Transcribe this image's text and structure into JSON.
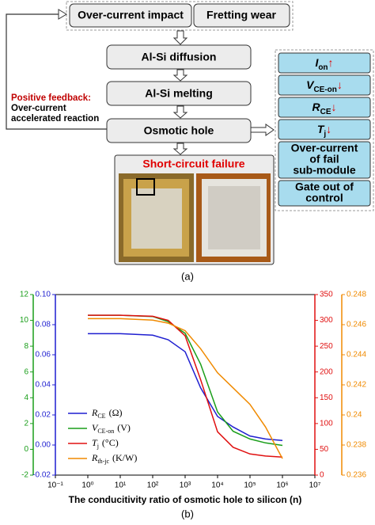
{
  "diagram": {
    "top_row": [
      "Over-current impact",
      "Fretting wear"
    ],
    "steps": [
      "Al-Si diffusion",
      "Al-Si melting",
      "Osmotic hole"
    ],
    "photo_title": "Short-circuit failure",
    "feedback": {
      "title": "Positive feedback:",
      "lines": [
        "Over-current",
        "accelerated reaction"
      ]
    },
    "effects": [
      {
        "symbol": "I",
        "sub": "on",
        "arrow": "↑"
      },
      {
        "symbol": "V",
        "sub": "CE-on",
        "arrow": "↓"
      },
      {
        "symbol": "R",
        "sub": "CE",
        "arrow": "↓"
      },
      {
        "symbol": "T",
        "sub": "j",
        "arrow": "↓"
      }
    ],
    "outcomes": [
      [
        "Over-current",
        "of fail",
        "sub-module"
      ],
      [
        "Gate out of",
        "control"
      ]
    ],
    "caption": "(a)"
  },
  "chart_data": {
    "type": "line",
    "caption": "(b)",
    "x_label": "The conducitivity ratio of osmotic hole to silicon (n)",
    "x_log": true,
    "xlim": [
      0.1,
      10000000
    ],
    "xticks": [
      {
        "value": 0.1,
        "label": "10⁻¹"
      },
      {
        "value": 1,
        "label": "10⁰"
      },
      {
        "value": 10,
        "label": "10¹"
      },
      {
        "value": 100,
        "label": "10²"
      },
      {
        "value": 1000,
        "label": "10³"
      },
      {
        "value": 10000,
        "label": "10⁴"
      },
      {
        "value": 100000,
        "label": "10⁵"
      },
      {
        "value": 1000000,
        "label": "10⁶"
      },
      {
        "value": 10000000,
        "label": "10⁷"
      }
    ],
    "axes": [
      {
        "side": "left-outer",
        "color": "#1a9e1a",
        "lim": [
          -2,
          12
        ],
        "ticks": [
          -2,
          0,
          2,
          4,
          6,
          8,
          10,
          12
        ]
      },
      {
        "side": "left-inner",
        "color": "#1f1fd0",
        "lim": [
          -0.02,
          0.1
        ],
        "ticks": [
          -0.02,
          {
            "value": 0,
            "label": "0.00"
          },
          0.02,
          0.04,
          0.06,
          0.08,
          {
            "value": 0.1,
            "label": "0.10"
          }
        ]
      },
      {
        "side": "right-inner",
        "color": "#e01010",
        "lim": [
          0,
          350
        ],
        "ticks": [
          0,
          50,
          100,
          150,
          200,
          250,
          300,
          350
        ]
      },
      {
        "side": "right-outer",
        "color": "#f08a00",
        "lim": [
          0.236,
          0.248
        ],
        "ticks": [
          0.236,
          0.238,
          0.24,
          0.242,
          0.244,
          0.246,
          0.248
        ]
      }
    ],
    "x": [
      1,
      10,
      100,
      300,
      1000,
      3000,
      10000,
      30000,
      100000,
      300000,
      1000000
    ],
    "series": [
      {
        "name": "R",
        "sub": "CE",
        "unit": "(Ω)",
        "color": "#1f1fd0",
        "axis": 1,
        "values": [
          0.074,
          0.074,
          0.073,
          0.07,
          0.062,
          0.038,
          0.019,
          0.012,
          0.006,
          0.004,
          0.003
        ]
      },
      {
        "name": "V",
        "sub": "CE-on",
        "unit": "(V)",
        "color": "#1a9e1a",
        "axis": 0,
        "values": [
          10.4,
          10.4,
          10.3,
          9.9,
          9.0,
          6.6,
          2.9,
          1.4,
          0.8,
          0.5,
          0.3
        ]
      },
      {
        "name": "T",
        "sub": "j",
        "unit": "(°C)",
        "color": "#e01010",
        "axis": 2,
        "values": [
          310,
          310,
          308,
          300,
          270,
          185,
          84,
          54,
          41,
          37,
          35
        ]
      },
      {
        "name": "R",
        "sub": "th-jc",
        "unit": "(K/W)",
        "color": "#f08a00",
        "axis": 3,
        "values": [
          0.2464,
          0.2464,
          0.2463,
          0.2461,
          0.2456,
          0.2444,
          0.2428,
          0.2418,
          0.2407,
          0.2392,
          0.2371
        ]
      }
    ]
  }
}
